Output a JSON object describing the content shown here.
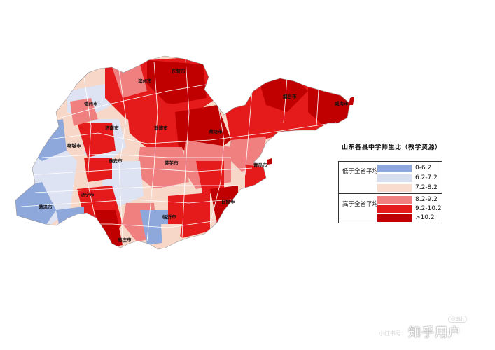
{
  "legend": {
    "title": "山东各县中学师生比（教学资源）",
    "groups": [
      {
        "label": "低于全省平均",
        "items": [
          {
            "range": "0-6.2",
            "color": "#8fa8dc"
          },
          {
            "range": "6.2-7.2",
            "color": "#d8dff0"
          },
          {
            "range": "7.2-8.2",
            "color": "#f9dccd"
          }
        ]
      },
      {
        "label": "高于全省平均",
        "items": [
          {
            "range": "8.2-9.2",
            "color": "#f08080"
          },
          {
            "range": "9.2-10.2",
            "color": "#e51b1b"
          },
          {
            "range": ">10.2",
            "color": "#c00000"
          }
        ]
      }
    ]
  },
  "map": {
    "city_labels": [
      "德州市",
      "滨州市",
      "东营市",
      "烟台市",
      "威海市",
      "聊城市",
      "济南市",
      "淄博市",
      "潍坊市",
      "青岛市",
      "菏泽市",
      "济宁市",
      "泰安市",
      "临沂市",
      "日照市",
      "枣庄市",
      "莱芜市"
    ]
  },
  "watermark": {
    "text": "知乎用户",
    "small_text": "小红书号",
    "badge": "@3th"
  }
}
